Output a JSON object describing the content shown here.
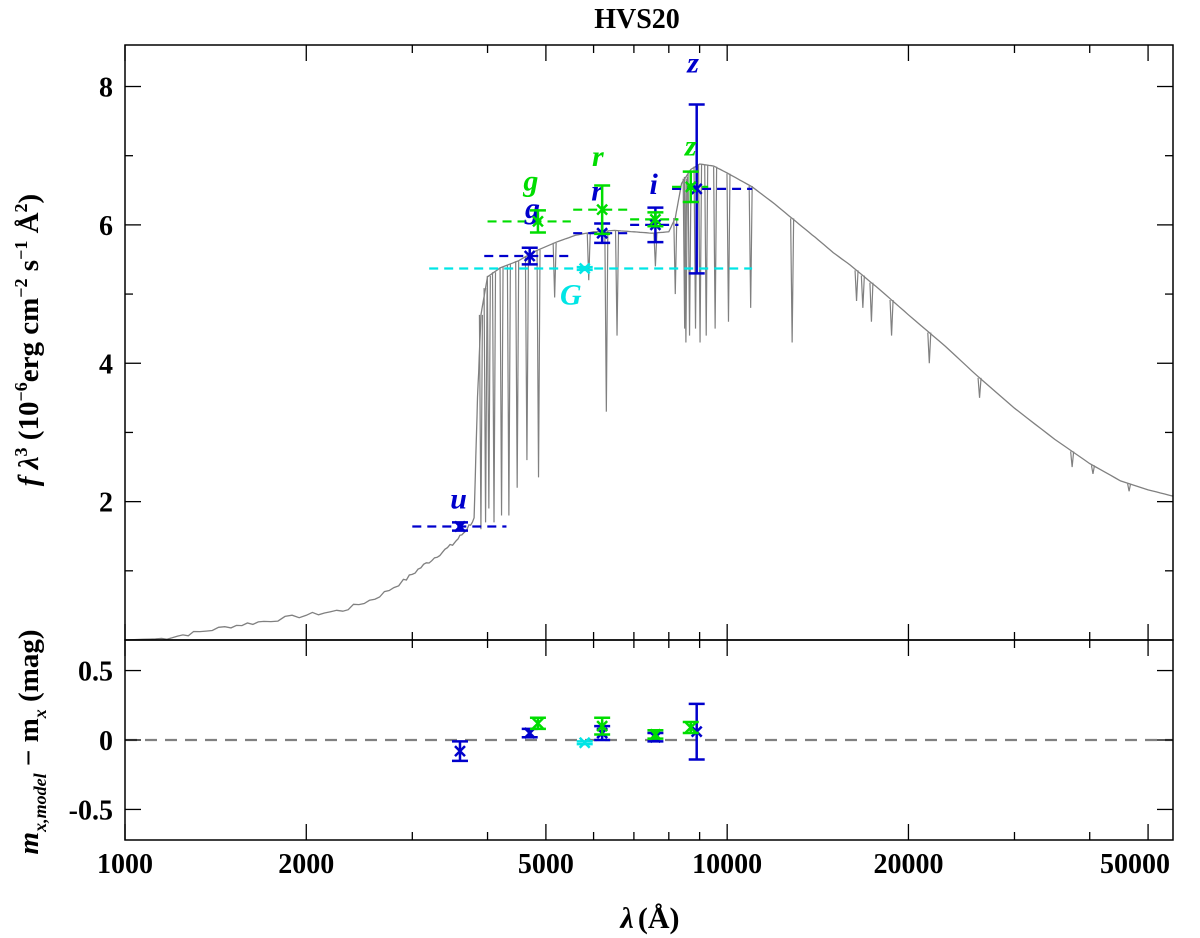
{
  "chart_data": {
    "type": "scatter",
    "title": "HVS20",
    "x_axis": {
      "scale": "log",
      "range": [
        1000,
        55000
      ],
      "major_ticks": [
        1000,
        2000,
        5000,
        10000,
        20000,
        50000
      ],
      "tick_labels": [
        "1000",
        "2000",
        "5000",
        "10000",
        "20000",
        "50000"
      ],
      "label_symbol": "λ",
      "label_unit": "(Å)"
    },
    "top_panel": {
      "ylabel_prefix": "f λ",
      "ylabel_exp": "3",
      "ylabel_mid": " (10",
      "ylabel_exp2": "−6",
      "ylabel_unit": "erg cm",
      "ylabel_exp3": "−2",
      "ylabel_s": " s",
      "ylabel_exp4": "−1",
      "ylabel_ang": " Å",
      "ylabel_exp5": "2",
      "ylabel_close": ")",
      "ylim": [
        0,
        8.6
      ],
      "y_ticks": [
        2,
        4,
        6,
        8
      ],
      "y_tick_labels": [
        "2",
        "4",
        "6",
        "8"
      ],
      "y_minor_step": 1,
      "model_spectrum_color": "#808080",
      "model_continuum": [
        [
          1000,
          0.0
        ],
        [
          1150,
          0.02
        ],
        [
          1300,
          0.1
        ],
        [
          1500,
          0.2
        ],
        [
          1700,
          0.27
        ],
        [
          2000,
          0.36
        ],
        [
          2300,
          0.43
        ],
        [
          2600,
          0.6
        ],
        [
          2900,
          0.85
        ],
        [
          3100,
          1.05
        ],
        [
          3300,
          1.22
        ],
        [
          3500,
          1.38
        ],
        [
          3650,
          1.55
        ],
        [
          3800,
          1.75
        ],
        [
          3850,
          3.5
        ],
        [
          3900,
          4.7
        ],
        [
          4000,
          5.25
        ],
        [
          4200,
          5.38
        ],
        [
          4500,
          5.48
        ],
        [
          4800,
          5.62
        ],
        [
          5200,
          5.75
        ],
        [
          5600,
          5.85
        ],
        [
          6000,
          5.9
        ],
        [
          6500,
          5.92
        ],
        [
          7000,
          5.9
        ],
        [
          7500,
          5.88
        ],
        [
          8000,
          5.9
        ],
        [
          8200,
          6.1
        ],
        [
          8400,
          6.6
        ],
        [
          8700,
          6.8
        ],
        [
          9000,
          6.88
        ],
        [
          9500,
          6.85
        ],
        [
          10000,
          6.75
        ],
        [
          11000,
          6.55
        ],
        [
          12000,
          6.3
        ],
        [
          13000,
          6.05
        ],
        [
          14000,
          5.82
        ],
        [
          15000,
          5.6
        ],
        [
          16000,
          5.42
        ],
        [
          18000,
          5.05
        ],
        [
          20000,
          4.7
        ],
        [
          23000,
          4.25
        ],
        [
          26000,
          3.82
        ],
        [
          30000,
          3.35
        ],
        [
          35000,
          2.9
        ],
        [
          40000,
          2.55
        ],
        [
          45000,
          2.3
        ],
        [
          50000,
          2.17
        ],
        [
          55000,
          2.08
        ]
      ],
      "absorption_lines": [
        [
          3900,
          1.6
        ],
        [
          3970,
          1.7
        ],
        [
          4020,
          1.9
        ],
        [
          4100,
          1.7
        ],
        [
          4220,
          1.8
        ],
        [
          4340,
          1.8
        ],
        [
          4480,
          2.2
        ],
        [
          4650,
          2.6
        ],
        [
          4861,
          2.35
        ],
        [
          5170,
          4.95
        ],
        [
          5890,
          5.2
        ],
        [
          6300,
          3.3
        ],
        [
          6563,
          4.4
        ],
        [
          7600,
          5.4
        ],
        [
          8200,
          5.0
        ],
        [
          8500,
          4.5
        ],
        [
          8540,
          4.3
        ],
        [
          8660,
          4.4
        ],
        [
          8860,
          4.5
        ],
        [
          9015,
          4.3
        ],
        [
          9230,
          4.4
        ],
        [
          9550,
          4.5
        ],
        [
          10050,
          4.6
        ],
        [
          10940,
          4.8
        ],
        [
          12820,
          4.3
        ],
        [
          16400,
          4.9
        ],
        [
          16800,
          4.8
        ],
        [
          17360,
          4.6
        ],
        [
          18750,
          4.4
        ],
        [
          21660,
          4.0
        ],
        [
          26250,
          3.5
        ],
        [
          37400,
          2.5
        ],
        [
          40500,
          2.4
        ],
        [
          46500,
          2.15
        ]
      ],
      "photometry": [
        {
          "survey_color": "#0000cc",
          "label": "u",
          "lambda": 3600,
          "flux": 1.64,
          "err": 0.06,
          "halfwidth_lo": 3000,
          "halfwidth_hi": 4300,
          "label_pos": [
            3580,
            1.9
          ]
        },
        {
          "survey_color": "#0000cc",
          "label": "g",
          "lambda": 4700,
          "flux": 5.55,
          "err": 0.12,
          "halfwidth_lo": 3950,
          "halfwidth_hi": 5500,
          "label_pos": [
            4750,
            6.1
          ]
        },
        {
          "survey_color": "#0000cc",
          "label": "r",
          "lambda": 6200,
          "flux": 5.88,
          "err": 0.14,
          "halfwidth_lo": 5550,
          "halfwidth_hi": 6900,
          "label_pos": [
            6080,
            6.35
          ]
        },
        {
          "survey_color": "#0000cc",
          "label": "i",
          "lambda": 7600,
          "flux": 6.0,
          "err": 0.25,
          "halfwidth_lo": 6900,
          "halfwidth_hi": 8300,
          "label_pos": [
            7550,
            6.45
          ]
        },
        {
          "survey_color": "#0000cc",
          "label": "z",
          "lambda": 8900,
          "flux": 6.52,
          "err": 1.22,
          "halfwidth_lo": 8100,
          "halfwidth_hi": 11000,
          "label_pos": [
            8780,
            8.2
          ]
        },
        {
          "survey_color": "#00dd00",
          "label": "g",
          "lambda": 4850,
          "flux": 6.05,
          "err": 0.16,
          "halfwidth_lo": 4000,
          "halfwidth_hi": 5500,
          "label_pos": [
            4720,
            6.5
          ]
        },
        {
          "survey_color": "#00dd00",
          "label": "r",
          "lambda": 6200,
          "flux": 6.22,
          "err": 0.35,
          "halfwidth_lo": 5550,
          "halfwidth_hi": 6900,
          "label_pos": [
            6100,
            6.85
          ]
        },
        {
          "survey_color": "#00dd00",
          "label": "i",
          "lambda": 7600,
          "flux": 6.08,
          "err": 0.1,
          "halfwidth_lo": 6900,
          "halfwidth_hi": 8300,
          "label_pos": null
        },
        {
          "survey_color": "#00dd00",
          "label": "z",
          "lambda": 8700,
          "flux": 6.55,
          "err": 0.22,
          "halfwidth_lo": 8100,
          "halfwidth_hi": 9300,
          "label_pos": [
            8700,
            7.0
          ]
        },
        {
          "survey_color": "#00e5e5",
          "label": "G",
          "lambda": 5800,
          "flux": 5.37,
          "err": 0.02,
          "halfwidth_lo": 3200,
          "halfwidth_hi": 11000,
          "label_pos": [
            5500,
            4.85
          ]
        }
      ]
    },
    "bottom_panel": {
      "ylabel_m": "m",
      "ylabel_sub": "x,model",
      "ylabel_minus": " − m",
      "ylabel_sub2": "x",
      "ylabel_unit": " (mag)",
      "ylim": [
        -0.72,
        0.72
      ],
      "y_ticks": [
        -0.5,
        0,
        0.5
      ],
      "y_tick_labels": [
        "-0.5",
        "0",
        "0.5"
      ],
      "residuals": [
        {
          "survey_color": "#0000cc",
          "lambda": 3600,
          "value": -0.08,
          "err": 0.07
        },
        {
          "survey_color": "#0000cc",
          "lambda": 4700,
          "value": 0.05,
          "err": 0.03
        },
        {
          "survey_color": "#0000cc",
          "lambda": 6200,
          "value": 0.05,
          "err": 0.05
        },
        {
          "survey_color": "#0000cc",
          "lambda": 7600,
          "value": 0.02,
          "err": 0.03
        },
        {
          "survey_color": "#0000cc",
          "lambda": 8900,
          "value": 0.06,
          "err": 0.2
        },
        {
          "survey_color": "#00dd00",
          "lambda": 4850,
          "value": 0.12,
          "err": 0.04
        },
        {
          "survey_color": "#00dd00",
          "lambda": 6200,
          "value": 0.1,
          "err": 0.06
        },
        {
          "survey_color": "#00dd00",
          "lambda": 7600,
          "value": 0.04,
          "err": 0.03
        },
        {
          "survey_color": "#00dd00",
          "lambda": 8700,
          "value": 0.09,
          "err": 0.04
        },
        {
          "survey_color": "#00e5e5",
          "lambda": 5800,
          "value": -0.02,
          "err": 0.01
        }
      ],
      "zero_line_color": "#808080"
    }
  }
}
